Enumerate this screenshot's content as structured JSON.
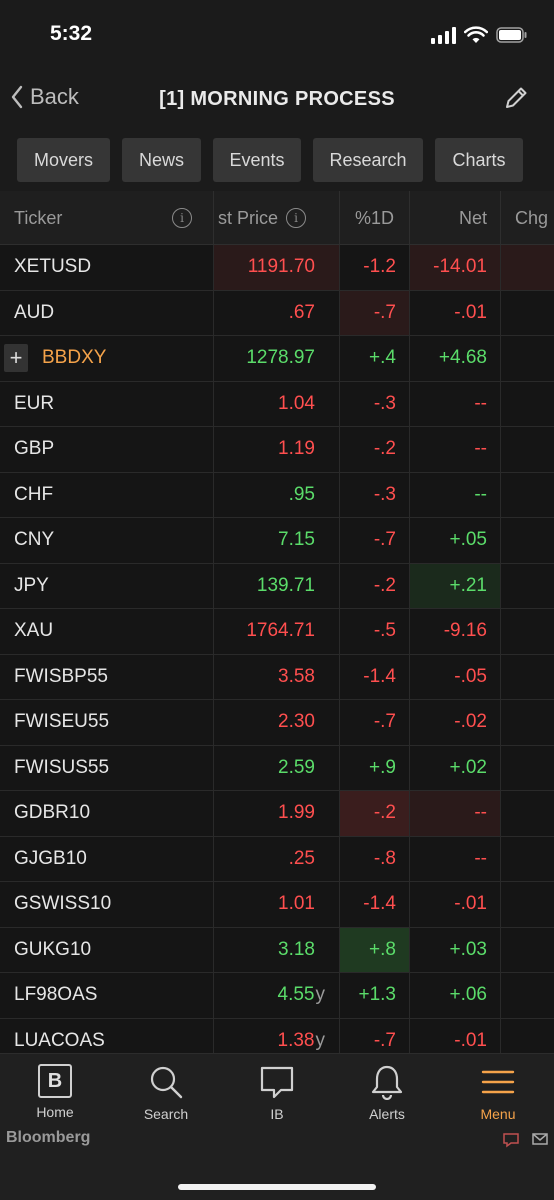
{
  "status_bar": {
    "time": "5:32"
  },
  "nav": {
    "back_label": "Back",
    "title": "[1] MORNING PROCESS"
  },
  "tabs": [
    "Movers",
    "News",
    "Events",
    "Research",
    "Charts"
  ],
  "table": {
    "headers": {
      "ticker": "Ticker",
      "price": "st Price",
      "pct": "%1D",
      "net": "Net",
      "chg": "Chg"
    },
    "rows": [
      {
        "ticker": "XETUSD",
        "price": "1191.70",
        "pct": "-1.2",
        "net": "-14.01"
      },
      {
        "ticker": "AUD",
        "price": ".67",
        "pct": "-.7",
        "net": "-.01"
      },
      {
        "ticker": "BBDXY",
        "price": "1278.97",
        "pct": "+.4",
        "net": "+4.68"
      },
      {
        "ticker": "EUR",
        "price": "1.04",
        "pct": "-.3",
        "net": "--"
      },
      {
        "ticker": "GBP",
        "price": "1.19",
        "pct": "-.2",
        "net": "--"
      },
      {
        "ticker": "CHF",
        "price": ".95",
        "pct": "-.3",
        "net": "--"
      },
      {
        "ticker": "CNY",
        "price": "7.15",
        "pct": "-.7",
        "net": "+.05"
      },
      {
        "ticker": "JPY",
        "price": "139.71",
        "pct": "-.2",
        "net": "+.21"
      },
      {
        "ticker": "XAU",
        "price": "1764.71",
        "pct": "-.5",
        "net": "-9.16"
      },
      {
        "ticker": "FWISBP55",
        "price": "3.58",
        "pct": "-1.4",
        "net": "-.05"
      },
      {
        "ticker": "FWISEU55",
        "price": "2.30",
        "pct": "-.7",
        "net": "-.02"
      },
      {
        "ticker": "FWISUS55",
        "price": "2.59",
        "pct": "+.9",
        "net": "+.02"
      },
      {
        "ticker": "GDBR10",
        "price": "1.99",
        "pct": "-.2",
        "net": "--"
      },
      {
        "ticker": "GJGB10",
        "price": ".25",
        "pct": "-.8",
        "net": "--"
      },
      {
        "ticker": "GSWISS10",
        "price": "1.01",
        "pct": "-1.4",
        "net": "-.01"
      },
      {
        "ticker": "GUKG10",
        "price": "3.18",
        "pct": "+.8",
        "net": "+.03"
      },
      {
        "ticker": "LF98OAS",
        "price": "4.55",
        "suffix": "y",
        "pct": "+1.3",
        "net": "+.06"
      },
      {
        "ticker": "LUACOAS",
        "price": "1.38",
        "suffix": "y",
        "pct": "-.7",
        "net": "-.01"
      }
    ]
  },
  "bottom_nav": [
    {
      "label": "Home",
      "glyph": "B"
    },
    {
      "label": "Search"
    },
    {
      "label": "IB"
    },
    {
      "label": "Alerts"
    },
    {
      "label": "Menu"
    }
  ],
  "brand": "Bloomberg",
  "colors": {
    "up": "#5bdc6a",
    "down": "#ff4f4f",
    "accent": "#f5a34a"
  }
}
